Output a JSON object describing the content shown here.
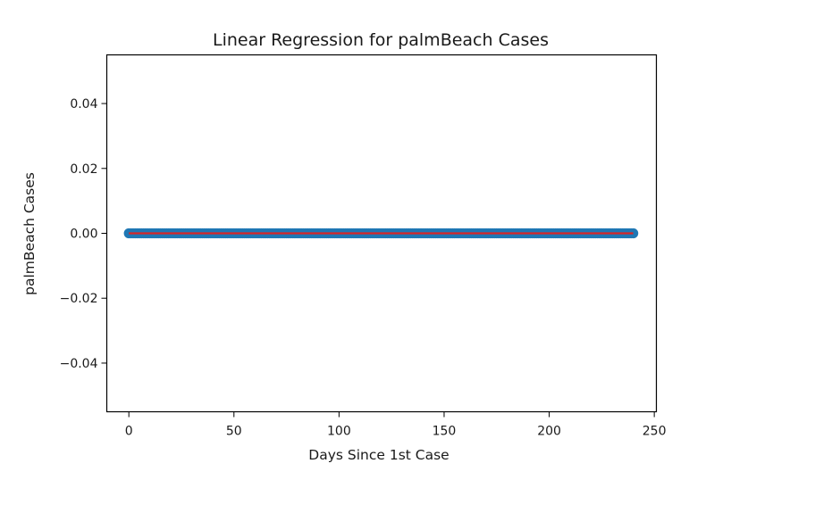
{
  "chart_data": {
    "type": "scatter",
    "title": "Linear Regression for palmBeach Cases",
    "xlabel": "Days Since 1st Case",
    "ylabel": "palmBeach Cases",
    "xlim": [
      -10.5,
      251
    ],
    "ylim": [
      -0.055,
      0.055
    ],
    "x_ticks": [
      0,
      50,
      100,
      150,
      200,
      250
    ],
    "x_tick_labels": [
      "0",
      "50",
      "100",
      "150",
      "200",
      "250"
    ],
    "y_ticks": [
      -0.04,
      -0.02,
      0.0,
      0.02,
      0.04
    ],
    "y_tick_labels": [
      "−0.04",
      "−0.02",
      "0.00",
      "0.02",
      "0.04"
    ],
    "grid": false,
    "legend": "none",
    "series": [
      {
        "kind": "scatter",
        "x_start": 0,
        "x_end": 240,
        "x_step": 1,
        "y_constant": 0.0,
        "color": "#1f77b4"
      },
      {
        "kind": "line",
        "x": [
          0,
          240
        ],
        "y": [
          0.0,
          0.0
        ],
        "color": "#d62728"
      }
    ]
  }
}
